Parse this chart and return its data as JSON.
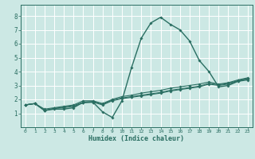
{
  "xlabel": "Humidex (Indice chaleur)",
  "xlim": [
    -0.5,
    23.5
  ],
  "ylim": [
    0,
    8.8
  ],
  "xticks": [
    0,
    1,
    2,
    3,
    4,
    5,
    6,
    7,
    8,
    9,
    10,
    11,
    12,
    13,
    14,
    15,
    16,
    17,
    18,
    19,
    20,
    21,
    22,
    23
  ],
  "yticks": [
    1,
    2,
    3,
    4,
    5,
    6,
    7,
    8
  ],
  "bg_color": "#cce8e4",
  "grid_color": "#ffffff",
  "line_color": "#2a6e62",
  "lines": [
    {
      "x": [
        0,
        1,
        2,
        3,
        4,
        5,
        6,
        7,
        8,
        9,
        10,
        11,
        12,
        13,
        14,
        15,
        16,
        17,
        18,
        19,
        20,
        21,
        22,
        23
      ],
      "y": [
        1.6,
        1.7,
        1.2,
        1.3,
        1.3,
        1.4,
        1.8,
        1.8,
        1.1,
        0.7,
        1.9,
        4.3,
        6.4,
        7.5,
        7.9,
        7.4,
        7.0,
        6.2,
        4.8,
        4.0,
        2.9,
        3.0,
        3.3,
        3.4
      ]
    },
    {
      "x": [
        0,
        1,
        2,
        3,
        4,
        5,
        6,
        7,
        8,
        9,
        10,
        11,
        12,
        13,
        14,
        15,
        16,
        17,
        18,
        19,
        20,
        21,
        22,
        23
      ],
      "y": [
        1.6,
        1.7,
        1.2,
        1.35,
        1.4,
        1.5,
        1.75,
        1.8,
        1.6,
        1.9,
        2.05,
        2.15,
        2.25,
        2.35,
        2.45,
        2.6,
        2.7,
        2.8,
        2.9,
        3.1,
        3.0,
        3.1,
        3.3,
        3.5
      ]
    },
    {
      "x": [
        0,
        1,
        2,
        3,
        4,
        5,
        6,
        7,
        8,
        9,
        10,
        11,
        12,
        13,
        14,
        15,
        16,
        17,
        18,
        19,
        20,
        21,
        22,
        23
      ],
      "y": [
        1.6,
        1.7,
        1.2,
        1.35,
        1.45,
        1.55,
        1.8,
        1.85,
        1.65,
        1.95,
        2.1,
        2.2,
        2.3,
        2.4,
        2.5,
        2.65,
        2.75,
        2.85,
        2.95,
        3.15,
        3.05,
        3.15,
        3.35,
        3.5
      ]
    },
    {
      "x": [
        0,
        1,
        2,
        3,
        4,
        5,
        6,
        7,
        8,
        9,
        10,
        11,
        12,
        13,
        14,
        15,
        16,
        17,
        18,
        19,
        20,
        21,
        22,
        23
      ],
      "y": [
        1.6,
        1.7,
        1.3,
        1.4,
        1.5,
        1.6,
        1.9,
        1.9,
        1.7,
        2.0,
        2.2,
        2.3,
        2.45,
        2.55,
        2.65,
        2.8,
        2.9,
        3.0,
        3.1,
        3.25,
        3.1,
        3.2,
        3.4,
        3.55
      ]
    }
  ]
}
